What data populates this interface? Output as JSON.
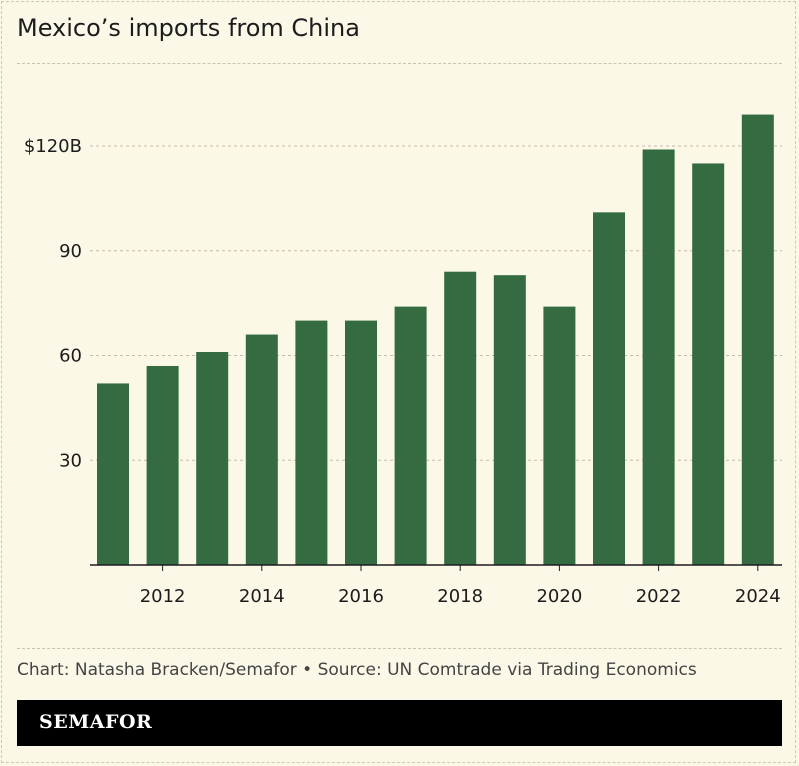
{
  "title": "Mexico’s imports from China",
  "credit": "Chart: Natasha Bracken/Semafor • Source: UN Comtrade via Trading Economics",
  "brand": "SEMAFOR",
  "colors": {
    "bar": "#356b40",
    "background": "#fbf8e8"
  },
  "chart_data": {
    "type": "bar",
    "categories": [
      "2011",
      "2012",
      "2013",
      "2014",
      "2015",
      "2016",
      "2017",
      "2018",
      "2019",
      "2020",
      "2021",
      "2022",
      "2023",
      "2024"
    ],
    "values": [
      52,
      57,
      61,
      66,
      70,
      70,
      74,
      84,
      83,
      74,
      101,
      119,
      115,
      129
    ],
    "unit": "billion USD",
    "ylim": [
      0,
      130
    ],
    "yticks": [
      30,
      60,
      90,
      120
    ],
    "ytick_labels": [
      "30",
      "60",
      "90",
      "$120B"
    ],
    "xtick_labels": [
      "2012",
      "2014",
      "2016",
      "2018",
      "2020",
      "2022",
      "2024"
    ],
    "grid": true
  }
}
